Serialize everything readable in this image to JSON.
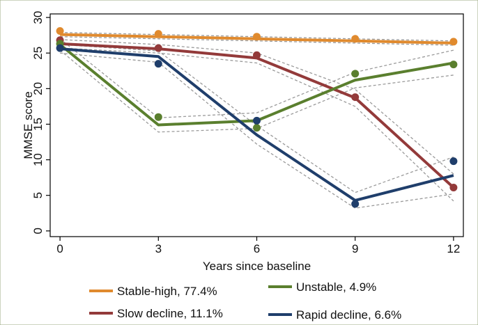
{
  "chart_data": {
    "type": "line",
    "xlabel": "Years since baseline",
    "ylabel": "MMSE score",
    "x_ticks": [
      0,
      3,
      6,
      9,
      12
    ],
    "y_ticks": [
      0,
      5,
      10,
      15,
      20,
      25,
      30
    ],
    "xlim": [
      -0.3,
      12.3
    ],
    "ylim": [
      -0.8,
      30.5
    ],
    "grid": false,
    "legend_position": "bottom",
    "series": [
      {
        "name": "Stable-high, 77.4%",
        "color": "#e08a2e",
        "observed": [
          [
            0,
            28.1
          ],
          [
            3,
            27.7
          ],
          [
            6,
            27.3
          ],
          [
            9,
            27.0
          ],
          [
            12,
            26.6
          ]
        ],
        "fitted": [
          [
            0,
            27.6
          ],
          [
            3,
            27.3
          ],
          [
            6,
            27.0
          ],
          [
            9,
            26.7
          ],
          [
            12,
            26.4
          ]
        ],
        "ci_upper": [
          [
            0,
            27.9
          ],
          [
            3,
            27.6
          ],
          [
            6,
            27.3
          ],
          [
            9,
            27.0
          ],
          [
            12,
            26.7
          ]
        ],
        "ci_lower": [
          [
            0,
            27.3
          ],
          [
            3,
            27.0
          ],
          [
            6,
            26.7
          ],
          [
            9,
            26.4
          ],
          [
            12,
            26.1
          ]
        ]
      },
      {
        "name": "Slow decline, 11.1%",
        "color": "#933a3a",
        "observed": [
          [
            0,
            26.8
          ],
          [
            3,
            25.7
          ],
          [
            6,
            24.7
          ],
          [
            9,
            18.8
          ],
          [
            12,
            6.1
          ]
        ],
        "fitted": [
          [
            0,
            26.3
          ],
          [
            3,
            25.6
          ],
          [
            6,
            24.3
          ],
          [
            9,
            18.7
          ],
          [
            12,
            6.1
          ]
        ],
        "ci_upper": [
          [
            0,
            26.9
          ],
          [
            3,
            26.2
          ],
          [
            6,
            25.0
          ],
          [
            9,
            19.9
          ],
          [
            12,
            8.0
          ]
        ],
        "ci_lower": [
          [
            0,
            25.7
          ],
          [
            3,
            25.0
          ],
          [
            6,
            23.6
          ],
          [
            9,
            17.5
          ],
          [
            12,
            4.2
          ]
        ]
      },
      {
        "name": "Unstable, 4.9%",
        "color": "#5a7f2e",
        "observed": [
          [
            0,
            26.3
          ],
          [
            3,
            16.0
          ],
          [
            6,
            14.5
          ],
          [
            9,
            22.1
          ],
          [
            12,
            23.4
          ]
        ],
        "fitted": [
          [
            0,
            26.2
          ],
          [
            3,
            14.9
          ],
          [
            6,
            15.5
          ],
          [
            9,
            21.2
          ],
          [
            12,
            23.6
          ]
        ],
        "ci_upper": [
          [
            0,
            27.0
          ],
          [
            3,
            15.9
          ],
          [
            6,
            16.6
          ],
          [
            9,
            22.3
          ],
          [
            12,
            25.4
          ]
        ],
        "ci_lower": [
          [
            0,
            25.4
          ],
          [
            3,
            13.9
          ],
          [
            6,
            14.4
          ],
          [
            9,
            20.1
          ],
          [
            12,
            21.9
          ]
        ]
      },
      {
        "name": "Rapid decline, 6.6%",
        "color": "#1f3e6b",
        "observed": [
          [
            0,
            25.7
          ],
          [
            3,
            23.5
          ],
          [
            6,
            15.5
          ],
          [
            9,
            3.8
          ],
          [
            12,
            9.8
          ]
        ],
        "fitted": [
          [
            0,
            25.6
          ],
          [
            3,
            24.5
          ],
          [
            6,
            13.5
          ],
          [
            9,
            4.3
          ],
          [
            12,
            7.8
          ]
        ],
        "ci_upper": [
          [
            0,
            26.2
          ],
          [
            3,
            25.3
          ],
          [
            6,
            14.8
          ],
          [
            9,
            5.4
          ],
          [
            12,
            10.4
          ]
        ],
        "ci_lower": [
          [
            0,
            25.0
          ],
          [
            3,
            23.7
          ],
          [
            6,
            12.2
          ],
          [
            9,
            3.2
          ],
          [
            12,
            5.2
          ]
        ]
      }
    ],
    "legend_order": [
      0,
      2,
      1,
      3
    ]
  }
}
